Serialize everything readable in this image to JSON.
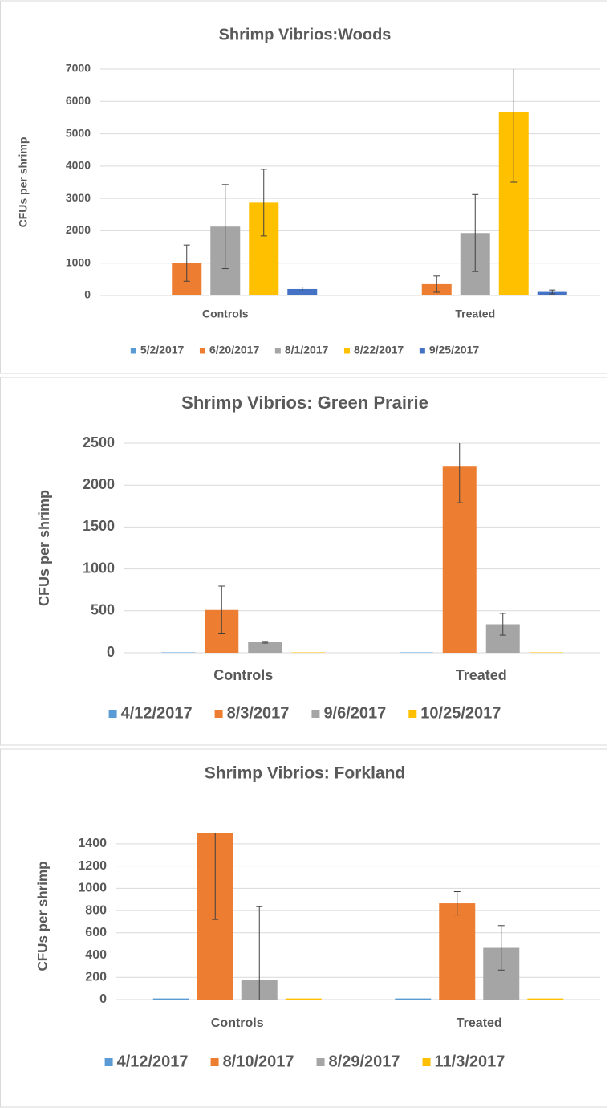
{
  "chart_data": [
    {
      "type": "bar",
      "title": "Shrimp Vibrios:Woods",
      "y_label": "CFUs per shrimp",
      "categories": [
        "Controls",
        "Treated"
      ],
      "series": [
        {
          "name": "5/2/2017",
          "color": "#5b9bd5",
          "values": [
            20,
            20
          ],
          "errors": [
            null,
            null
          ]
        },
        {
          "name": "6/20/2017",
          "color": "#ed7d31",
          "values": [
            1000,
            350
          ],
          "errors": [
            560,
            250
          ]
        },
        {
          "name": "8/1/2017",
          "color": "#a5a5a5",
          "values": [
            2130,
            1930
          ],
          "errors": [
            1300,
            1190
          ]
        },
        {
          "name": "8/22/2017",
          "color": "#ffc000",
          "values": [
            2870,
            5670
          ],
          "errors": [
            1030,
            2170
          ]
        },
        {
          "name": "9/25/2017",
          "color": "#4472c4",
          "values": [
            200,
            110
          ],
          "errors": [
            60,
            60
          ]
        }
      ],
      "ylim": [
        0,
        7000
      ],
      "yticks": [
        0,
        1000,
        2000,
        3000,
        4000,
        5000,
        6000,
        7000
      ],
      "grid": true,
      "legend": "bottom"
    },
    {
      "type": "bar",
      "title": "Shrimp Vibrios: Green Prairie",
      "y_label": "CFUs per shrimp",
      "categories": [
        "Controls",
        "Treated"
      ],
      "series": [
        {
          "name": "4/12/2017",
          "color": "#5b9bd5",
          "values": [
            5,
            5
          ],
          "errors": [
            null,
            null
          ]
        },
        {
          "name": "8/3/2017",
          "color": "#ed7d31",
          "values": [
            510,
            2220
          ],
          "errors": [
            285,
            430
          ]
        },
        {
          "name": "9/6/2017",
          "color": "#a5a5a5",
          "values": [
            125,
            340
          ],
          "errors": [
            10,
            130
          ]
        },
        {
          "name": "10/25/2017",
          "color": "#ffc000",
          "values": [
            5,
            5
          ],
          "errors": [
            null,
            null
          ]
        }
      ],
      "ylim": [
        0,
        2500
      ],
      "yticks": [
        0,
        500,
        1000,
        1500,
        2000,
        2500
      ],
      "grid": true,
      "legend": "bottom"
    },
    {
      "type": "bar",
      "title": "Shrimp Vibrios: Forkland",
      "y_label": "CFUs per shrimp",
      "categories": [
        "Controls",
        "Treated"
      ],
      "series": [
        {
          "name": "4/12/2017",
          "color": "#5b9bd5",
          "values": [
            10,
            10
          ],
          "errors": [
            null,
            null
          ]
        },
        {
          "name": "8/10/2017",
          "color": "#ed7d31",
          "values": [
            1500,
            865
          ],
          "errors": [
            780,
            105
          ]
        },
        {
          "name": "8/29/2017",
          "color": "#a5a5a5",
          "values": [
            180,
            465
          ],
          "errors": [
            655,
            200
          ]
        },
        {
          "name": "11/3/2017",
          "color": "#ffc000",
          "values": [
            10,
            10
          ],
          "errors": [
            null,
            null
          ]
        }
      ],
      "ylim": [
        0,
        1500
      ],
      "yticks": [
        0,
        200,
        400,
        600,
        800,
        1000,
        1200,
        1400
      ],
      "grid": true,
      "legend": "bottom"
    }
  ]
}
